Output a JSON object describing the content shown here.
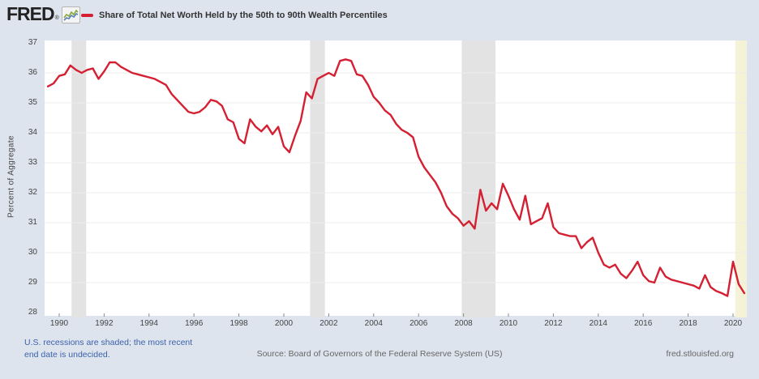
{
  "header": {
    "logo_text": "FRED",
    "registered_mark": "®",
    "series_label": "Share of Total Net Worth Held by the 50th to 90th Wealth Percentiles"
  },
  "y_axis": {
    "label": "Percent of Aggregate",
    "ticks": [
      37,
      36,
      35,
      34,
      33,
      32,
      31,
      30,
      29,
      28
    ],
    "min": 28,
    "max": 37
  },
  "x_axis": {
    "tick_years": [
      1990,
      1992,
      1994,
      1996,
      1998,
      2000,
      2002,
      2004,
      2006,
      2008,
      2010,
      2012,
      2014,
      2016,
      2018,
      2020
    ]
  },
  "footer": {
    "note_line1": "U.S. recessions are shaded; the most recent",
    "note_line2": "end date is undecided.",
    "source": "Source: Board of Governors of the Federal Reserve System (US)",
    "site": "fred.stlouisfed.org"
  },
  "colors": {
    "line": "#d42032",
    "recession": "#e3e3e3",
    "recession_undecided": "#f4f3d7",
    "plot_bg": "#ffffff",
    "page_bg": "#dde4ee",
    "gridline": "#ececec",
    "tick_mark": "#8a8a8a",
    "axis_text": "#444444",
    "note_text": "#3d62a8",
    "icon_green": "#86a838",
    "icon_blue": "#5b7fb4"
  },
  "chart_data": {
    "type": "line",
    "title": "Share of Total Net Worth Held by the 50th to 90th Wealth Percentiles",
    "ylabel": "Percent of Aggregate",
    "ylim": [
      28,
      37
    ],
    "xlim": [
      1989.35,
      2020.65
    ],
    "frequency": "quarterly",
    "start": "1989 Q3",
    "end": "2020 Q3",
    "x_start": 1989.5,
    "x_step": 0.25,
    "values": [
      35.55,
      35.65,
      35.9,
      35.95,
      36.25,
      36.1,
      36.0,
      36.1,
      36.15,
      35.8,
      36.05,
      36.35,
      36.35,
      36.2,
      36.1,
      36.0,
      35.95,
      35.9,
      35.85,
      35.8,
      35.7,
      35.6,
      35.3,
      35.1,
      34.9,
      34.7,
      34.65,
      34.7,
      34.85,
      35.1,
      35.05,
      34.9,
      34.45,
      34.35,
      33.8,
      33.65,
      34.45,
      34.2,
      34.05,
      34.25,
      33.95,
      34.2,
      33.55,
      33.35,
      33.9,
      34.4,
      35.35,
      35.15,
      35.8,
      35.9,
      36.0,
      35.9,
      36.4,
      36.45,
      36.4,
      35.95,
      35.9,
      35.6,
      35.2,
      35.0,
      34.75,
      34.6,
      34.3,
      34.1,
      34.0,
      33.85,
      33.2,
      32.85,
      32.6,
      32.35,
      32.0,
      31.55,
      31.3,
      31.15,
      30.9,
      31.05,
      30.8,
      32.1,
      31.4,
      31.65,
      31.45,
      32.3,
      31.9,
      31.45,
      31.1,
      31.9,
      30.95,
      31.05,
      31.15,
      31.65,
      30.85,
      30.65,
      30.6,
      30.55,
      30.55,
      30.15,
      30.35,
      30.5,
      30.0,
      29.6,
      29.5,
      29.6,
      29.3,
      29.15,
      29.4,
      29.7,
      29.25,
      29.05,
      29.0,
      29.5,
      29.2,
      29.1,
      29.05,
      29.0,
      28.95,
      28.9,
      28.8,
      29.25,
      28.85,
      28.72,
      28.65,
      28.55,
      29.7,
      28.95,
      28.65
    ],
    "recessions": [
      {
        "start": 1990.55,
        "end": 1991.2,
        "undecided": false
      },
      {
        "start": 2001.17,
        "end": 2001.83,
        "undecided": false
      },
      {
        "start": 2007.92,
        "end": 2009.42,
        "undecided": false
      },
      {
        "start": 2020.1,
        "end": 2020.65,
        "undecided": true
      }
    ],
    "legend_position": "top",
    "grid": "horizontal"
  }
}
